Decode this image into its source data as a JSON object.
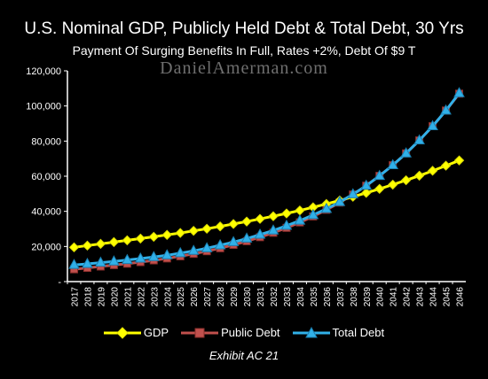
{
  "chart_data": {
    "type": "line",
    "title": "U.S. Nominal GDP, Publicly Held Debt & Total Debt, 30 Yrs",
    "subtitle": "Payment Of Surging Benefits In Full, Rates +2%, Debt Of $9 T",
    "watermark": "DanielAmerman.com",
    "footer": "Exhibit AC 21",
    "ylim": [
      0,
      120000
    ],
    "y_ticks": [
      "-",
      "20,000",
      "40,000",
      "60,000",
      "80,000",
      "100,000",
      "120,000"
    ],
    "grid": false,
    "legend_position": "bottom",
    "categories": [
      "2017",
      "2018",
      "2019",
      "2020",
      "2021",
      "2022",
      "2023",
      "2024",
      "2025",
      "2026",
      "2027",
      "2028",
      "2029",
      "2030",
      "2031",
      "2032",
      "2033",
      "2034",
      "2035",
      "2036",
      "2037",
      "2038",
      "2039",
      "2040",
      "2041",
      "2042",
      "2043",
      "2044",
      "2045",
      "2046"
    ],
    "series": [
      {
        "name": "GDP",
        "color": "#ffff00",
        "marker": "diamond",
        "values": [
          19500,
          20500,
          21500,
          22500,
          23500,
          24500,
          25500,
          26600,
          27700,
          28900,
          30100,
          31400,
          32800,
          34200,
          35700,
          37200,
          38800,
          40500,
          42300,
          44200,
          46200,
          48300,
          50500,
          52800,
          55200,
          57700,
          60300,
          63100,
          66000,
          69000
        ]
      },
      {
        "name": "Public Debt",
        "color": "#c0504d",
        "marker": "square",
        "values": [
          7000,
          7800,
          8600,
          9400,
          10200,
          11100,
          12100,
          13200,
          14400,
          15800,
          17300,
          19000,
          20900,
          23000,
          25300,
          27800,
          30600,
          33700,
          37100,
          40900,
          45000,
          49600,
          54600,
          60200,
          66300,
          73000,
          80400,
          88500,
          97400,
          107000
        ]
      },
      {
        "name": "Total Debt",
        "color": "#31b0e8",
        "marker": "triangle",
        "values": [
          9500,
          10100,
          10800,
          11500,
          12300,
          13100,
          14000,
          15000,
          16200,
          17500,
          19000,
          20700,
          22500,
          24500,
          26700,
          29100,
          31800,
          34700,
          37900,
          41400,
          45300,
          49700,
          54600,
          60200,
          66300,
          73000,
          80400,
          88500,
          97400,
          107300
        ]
      }
    ]
  }
}
